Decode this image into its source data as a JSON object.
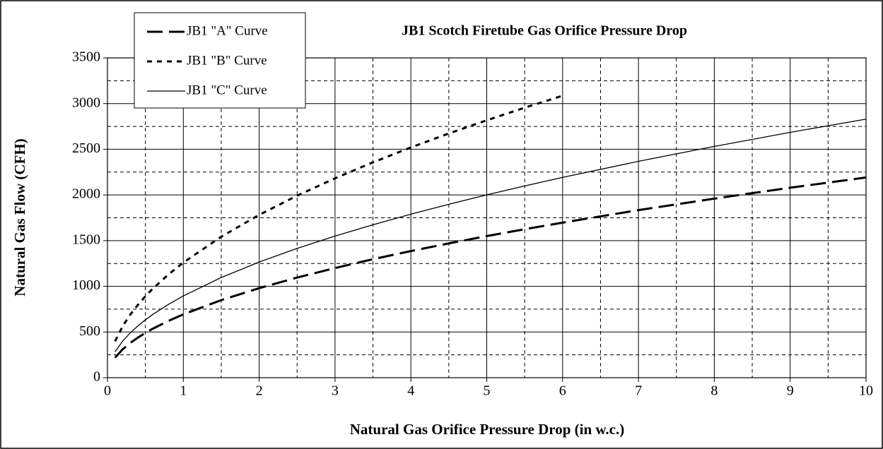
{
  "chart_data": {
    "type": "line",
    "title": "JB1 Scotch Firetube Gas Orifice Pressure Drop",
    "x_label": "Natural Gas Orifice Pressure Drop (in w.c.)",
    "y_label": "Natural Gas Flow (CFH)",
    "x": [
      0.1,
      0.2,
      0.3,
      0.4,
      0.5,
      0.6,
      0.8,
      1,
      1.5,
      2,
      2.5,
      3,
      3.5,
      4,
      4.5,
      5,
      5.5,
      6,
      7,
      8,
      9,
      10
    ],
    "series": [
      {
        "name": "JB1 \"A\" Curve",
        "color": "#000000",
        "width": 3,
        "dash": "22,9",
        "values": [
          219,
          310,
          380,
          438,
          490,
          537,
          620,
          693,
          849,
          980,
          1096,
          1200,
          1297,
          1386,
          1470,
          1550,
          1625,
          1697,
          1834,
          1960,
          2079,
          2191
        ]
      },
      {
        "name": "JB1 \"B\" Curve",
        "color": "#000000",
        "width": 3,
        "dash": "7,7",
        "values": [
          398,
          563,
          690,
          796,
          891,
          976,
          1127,
          1260,
          1543,
          1782,
          1992,
          2182,
          2357,
          2520,
          2673,
          2817,
          2955,
          3086,
          null,
          null,
          null,
          null
        ]
      },
      {
        "name": "JB1 \"C\" Curve",
        "color": "#000000",
        "width": 1.3,
        "dash": "none",
        "values": [
          283,
          400,
          490,
          566,
          633,
          694,
          800,
          895,
          1096,
          1266,
          1415,
          1550,
          1674,
          1790,
          1898,
          2001,
          2099,
          2192,
          2368,
          2531,
          2685,
          2830
        ]
      }
    ],
    "xlim": [
      0,
      10
    ],
    "xticks": [
      0,
      1,
      2,
      3,
      4,
      5,
      6,
      7,
      8,
      9,
      10
    ],
    "ylim": [
      0,
      3500
    ],
    "yticks": [
      0,
      500,
      1000,
      1500,
      2000,
      2500,
      3000,
      3500
    ],
    "minor_xticks": [
      0.5,
      1.5,
      2.5,
      3.5,
      4.5,
      5.5,
      6.5,
      7.5,
      8.5,
      9.5
    ],
    "minor_yticks": [
      250,
      750,
      1250,
      1750,
      2250,
      2750,
      3250
    ],
    "grid": true,
    "legend": "upper left"
  }
}
